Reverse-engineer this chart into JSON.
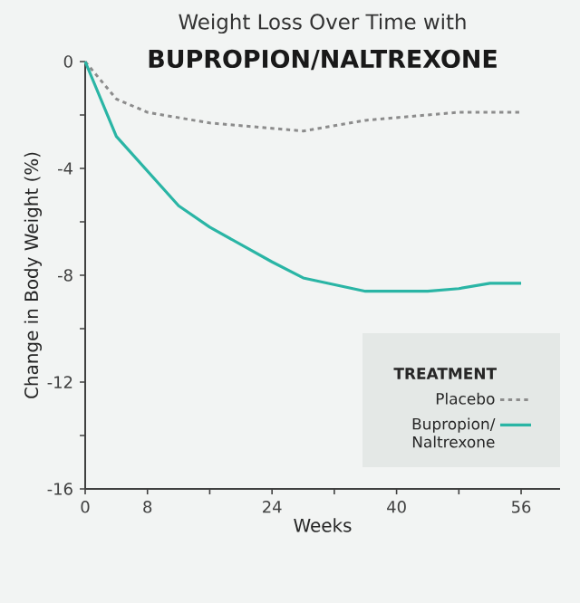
{
  "chart_data": {
    "type": "line",
    "title": "Weight Loss Over Time with",
    "subtitle": "BUPROPION/NALTREXONE",
    "xlabel": "Weeks",
    "ylabel": "Change in Body Weight (%)",
    "legend_title": "TREATMENT",
    "xlim": [
      0,
      61
    ],
    "xticks": [
      0,
      8,
      {
        "value": 16,
        "label": null
      },
      24,
      {
        "value": 32,
        "label": null
      },
      40,
      {
        "value": 48,
        "label": null
      },
      56
    ],
    "ylim": [
      -16,
      0
    ],
    "yticks": [
      {
        "value": -16,
        "label": "-16"
      },
      {
        "value": -14,
        "label": null
      },
      {
        "value": -12,
        "label": "-12"
      },
      {
        "value": -10,
        "label": null
      },
      {
        "value": -8,
        "label": "-8"
      },
      {
        "value": -6,
        "label": null
      },
      {
        "value": -4,
        "label": "-4"
      },
      {
        "value": -2,
        "label": null
      },
      0
    ],
    "legend": "bottom right",
    "grid": false,
    "marker": "none",
    "series": [
      {
        "name": "Placebo",
        "color": "#8c8c8c",
        "line_style": "dotted",
        "x": [
          0,
          4,
          8,
          16,
          24,
          28,
          36,
          44,
          48,
          56
        ],
        "values": [
          0,
          -1.4,
          -1.9,
          -2.3,
          -2.5,
          -2.6,
          -2.2,
          -2.0,
          -1.9,
          -1.9
        ]
      },
      {
        "name": "Bupropion/ Naltrexone",
        "color": "#2ab5a5",
        "line_style": "solid",
        "x": [
          0,
          4,
          8,
          12,
          16,
          24,
          28,
          36,
          44,
          48,
          52,
          56
        ],
        "values": [
          0,
          -2.8,
          -4.1,
          -5.4,
          -6.2,
          -7.5,
          -8.1,
          -8.6,
          -8.6,
          -8.5,
          -8.3,
          -8.3
        ]
      }
    ]
  }
}
